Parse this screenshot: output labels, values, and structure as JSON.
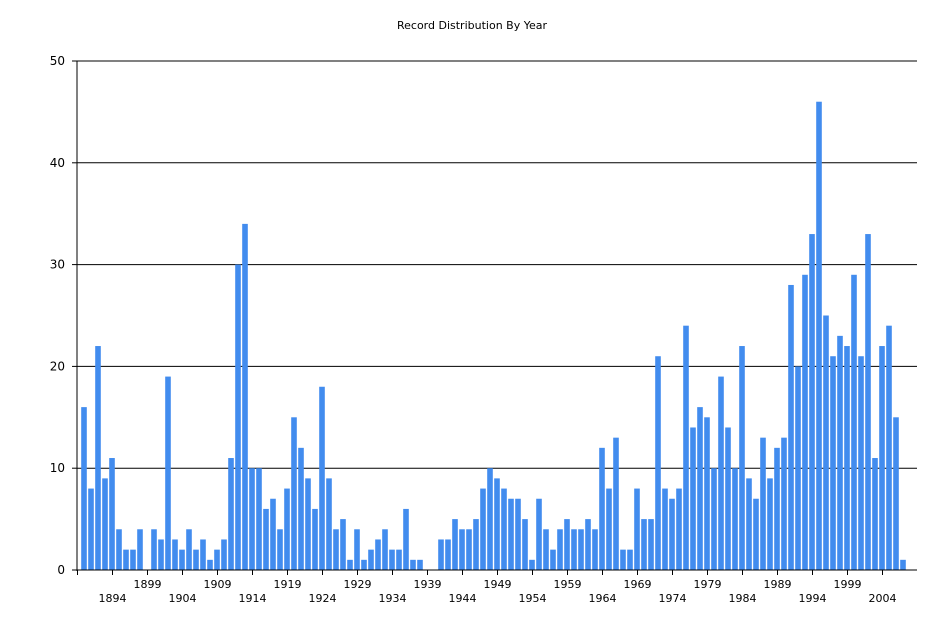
{
  "chart_data": {
    "type": "bar",
    "title": "Record Distribution By Year",
    "xlabel": "",
    "ylabel": "",
    "ylim": [
      0,
      50
    ],
    "yticks": [
      0,
      10,
      20,
      30,
      40,
      50
    ],
    "grid": true,
    "bar_color": "#428cee",
    "x_start": 1890,
    "x_end": 2007,
    "xtick_labels": [
      "1894",
      "1899",
      "1904",
      "1909",
      "1914",
      "1919",
      "1924",
      "1929",
      "1934",
      "1939",
      "1944",
      "1949",
      "1954",
      "1959",
      "1964",
      "1969",
      "1974",
      "1979",
      "1984",
      "1989",
      "1994",
      "1999",
      "2004"
    ],
    "values": [
      16,
      8,
      22,
      9,
      11,
      4,
      2,
      2,
      4,
      0,
      4,
      3,
      19,
      3,
      2,
      4,
      2,
      3,
      1,
      2,
      3,
      11,
      30,
      34,
      10,
      10,
      6,
      7,
      4,
      8,
      15,
      12,
      9,
      6,
      18,
      9,
      4,
      5,
      1,
      4,
      1,
      2,
      3,
      4,
      2,
      2,
      6,
      1,
      1,
      0,
      0,
      3,
      3,
      5,
      4,
      4,
      5,
      8,
      10,
      9,
      8,
      7,
      7,
      5,
      1,
      7,
      4,
      2,
      4,
      5,
      4,
      4,
      5,
      4,
      12,
      8,
      13,
      2,
      2,
      8,
      5,
      5,
      21,
      8,
      7,
      8,
      24,
      14,
      16,
      15,
      10,
      19,
      14,
      10,
      22,
      9,
      7,
      13,
      9,
      12,
      13,
      28,
      20,
      29,
      33,
      46,
      25,
      21,
      23,
      22,
      29,
      21,
      33,
      11,
      22,
      24,
      15,
      1
    ]
  }
}
